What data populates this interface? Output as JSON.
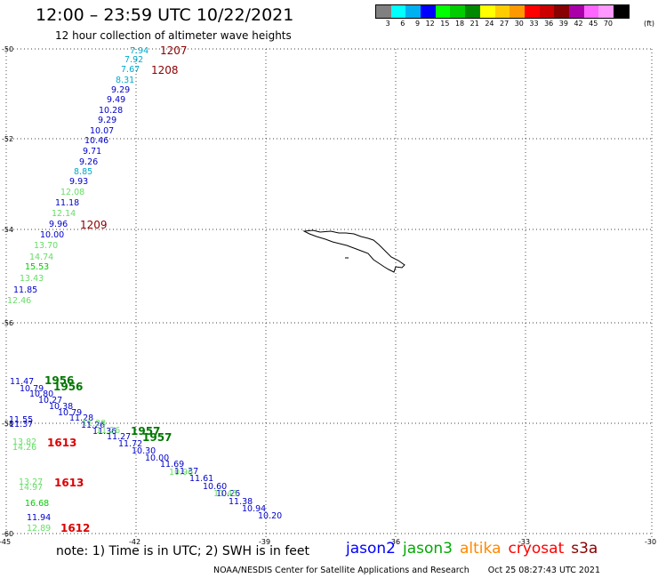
{
  "header": {
    "title": "12:00 – 23:59 UTC 10/22/2021",
    "subtitle": "12 hour collection of altimeter wave heights"
  },
  "legend": {
    "colors": [
      "#808080",
      "#00ffff",
      "#00b0f0",
      "#0000ff",
      "#00ff00",
      "#00cc00",
      "#008800",
      "#ffff00",
      "#ffcc00",
      "#ff9900",
      "#ff0000",
      "#cc0000",
      "#880000",
      "#aa00aa",
      "#ff66ff",
      "#ff99ff",
      "#000000"
    ],
    "labels": [
      "3",
      "6",
      "9",
      "12",
      "15",
      "18",
      "21",
      "24",
      "27",
      "30",
      "33",
      "36",
      "39",
      "42",
      "45",
      "70"
    ],
    "unit": "(ft)"
  },
  "axes": {
    "lat_labels": [
      "-50",
      "-52",
      "-54",
      "-56",
      "-58",
      "-60"
    ],
    "lon_labels": [
      "-45",
      "-42",
      "-39",
      "-36",
      "-33",
      "-30"
    ]
  },
  "tracks": [
    {
      "color": "#8c0000",
      "time": "1207",
      "points": [
        [
          "7.94",
          "#00aacc"
        ],
        [
          "7.92",
          "#00aacc"
        ],
        [
          "7.67",
          "#00aacc"
        ],
        [
          "8.31",
          "#00aacc"
        ],
        [
          "9.29",
          "#0000cc"
        ],
        [
          "9.49",
          "#0000cc"
        ],
        [
          "10.28",
          "#0000cc"
        ],
        [
          "9.29",
          "#0000cc"
        ],
        [
          "10.07",
          "#0000cc"
        ],
        [
          "10.46",
          "#0000cc"
        ],
        [
          "9.71",
          "#0000cc"
        ],
        [
          "9.26",
          "#0000cc"
        ],
        [
          "8.85",
          "#00aacc"
        ],
        [
          "9.93",
          "#0000cc"
        ],
        [
          "12.08",
          "#66dd66"
        ],
        [
          "11.18",
          "#0000cc"
        ],
        [
          "12.14",
          "#66dd66"
        ],
        [
          "9.96",
          "#0000cc"
        ],
        [
          "10.00",
          "#0000cc"
        ],
        [
          "13.70",
          "#66dd66"
        ],
        [
          "14.74",
          "#66dd66"
        ],
        [
          "15.53",
          "#00cc00"
        ],
        [
          "13.43",
          "#66dd66"
        ],
        [
          "11.85",
          "#0000cc"
        ],
        [
          "12.46",
          "#66dd66"
        ]
      ]
    },
    {
      "time_labels": [
        "1208",
        "1209"
      ]
    },
    {
      "color": "#007700",
      "time_labels": [
        "1956",
        "1956",
        "1957",
        "1957"
      ],
      "values": [
        "11.47",
        "10.79",
        "10.80",
        "10.27",
        "10.38",
        "10.79",
        "11.28",
        "11.26",
        "11.36",
        "11.27",
        "11.72",
        "10.30",
        "10.00",
        "11.69",
        "11.37",
        "11.61",
        "10.60",
        "10.26",
        "11.38",
        "10.94",
        "10.20"
      ]
    },
    {
      "color": "#dd0000",
      "time_labels": [
        "1613",
        "1613",
        "1612"
      ],
      "values": [
        "11.55",
        "11.37",
        "13.82",
        "14.26",
        "13.27",
        "14.97",
        "16.68",
        "11.94",
        "12.89"
      ]
    }
  ],
  "satellites": [
    {
      "name": "jason2",
      "color": "#0000ff"
    },
    {
      "name": "jason3",
      "color": "#00aa00"
    },
    {
      "name": "altika",
      "color": "#ff8800"
    },
    {
      "name": "cryosat",
      "color": "#ff0000"
    },
    {
      "name": "s3a",
      "color": "#880000"
    }
  ],
  "footer": {
    "note": "note:  1) Time is in UTC;  2) SWH is in feet",
    "credit": "NOAA/NESDIS Center for Satellite Applications and Research",
    "generated": "Oct 25 08:27:43 UTC 2021"
  }
}
